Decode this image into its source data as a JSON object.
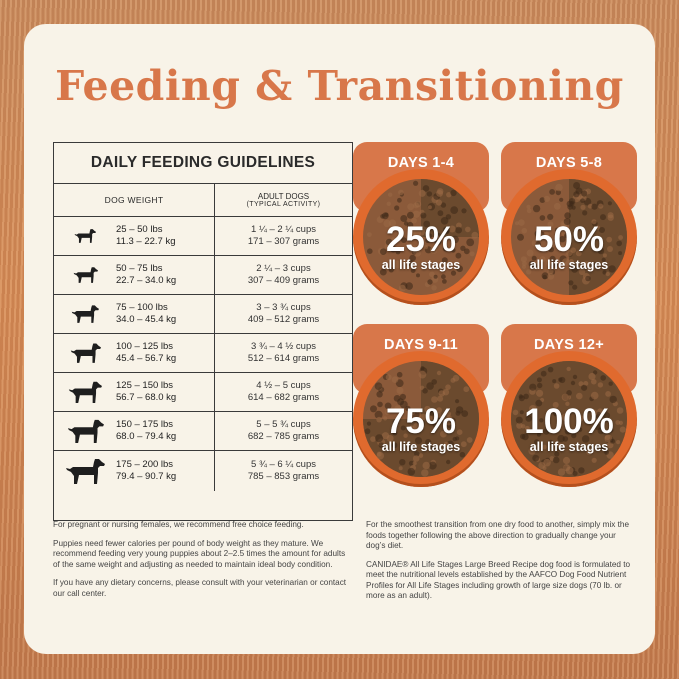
{
  "title": "Feeding & Transitioning",
  "table": {
    "title": "DAILY FEEDING GUIDELINES",
    "col_weight": "DOG WEIGHT",
    "col_adult": "ADULT DOGS",
    "col_adult_sub": "(TYPICAL ACTIVITY)",
    "rows": [
      {
        "lbs": "25 – 50 lbs",
        "kg": "11.3 – 22.7 kg",
        "cups": "1 ¼ – 2 ¼ cups",
        "grams": "171 – 307 grams"
      },
      {
        "lbs": "50 – 75 lbs",
        "kg": "22.7 – 34.0 kg",
        "cups": "2 ¼ – 3 cups",
        "grams": "307 – 409 grams"
      },
      {
        "lbs": "75 – 100 lbs",
        "kg": "34.0 – 45.4 kg",
        "cups": "3 – 3 ¾ cups",
        "grams": "409 – 512 grams"
      },
      {
        "lbs": "100 – 125 lbs",
        "kg": "45.4 – 56.7 kg",
        "cups": "3 ¾ – 4 ½ cups",
        "grams": "512 – 614 grams"
      },
      {
        "lbs": "125 – 150 lbs",
        "kg": "56.7 – 68.0 kg",
        "cups": "4 ½ – 5 cups",
        "grams": "614 – 682 grams"
      },
      {
        "lbs": "150 – 175 lbs",
        "kg": "68.0 – 79.4 kg",
        "cups": "5 – 5 ¾ cups",
        "grams": "682 – 785 grams"
      },
      {
        "lbs": "175 – 200 lbs",
        "kg": "79.4 – 90.7 kg",
        "cups": "5 ¾ – 6 ¼ cups",
        "grams": "785 – 853 grams"
      }
    ]
  },
  "transition": [
    {
      "days": "DAYS 1-4",
      "percent": "25%",
      "label": "all life stages",
      "fraction": 0.25
    },
    {
      "days": "DAYS 5-8",
      "percent": "50%",
      "label": "all life stages",
      "fraction": 0.5
    },
    {
      "days": "DAYS 9-11",
      "percent": "75%",
      "label": "all life stages",
      "fraction": 0.75
    },
    {
      "days": "DAYS 12+",
      "percent": "100%",
      "label": "all life stages",
      "fraction": 1.0
    }
  ],
  "notes_left": [
    "For pregnant or nursing females, we recommend free choice feeding.",
    "Puppies need fewer calories per pound of body weight as they mature. We recommend feeding very young puppies about 2–2.5 times the amount for adults of the same weight and adjusting as needed to maintain ideal body condition.",
    "If you have any dietary concerns, please consult with your veterinarian or contact our call center."
  ],
  "notes_right": [
    "For the smoothest transition from one dry food to another, simply mix the foods together following the above direction to gradually change your dog’s diet.",
    "CANIDAE® All Life Stages Large Breed Recipe dog food is formulated to meet the nutritional levels established by the AAFCO Dog Food Nutrient Profiles for All Life Stages including growth of large size dogs (70 lb. or more as an adult)."
  ],
  "colors": {
    "accent": "#d8774a",
    "bowl": "#e06a2e",
    "kibble_new": "#6b4a2e",
    "kibble_old": "#8b5a3a",
    "text": "#2a2a2a",
    "card": "#f8f3e8"
  },
  "icons": [
    "dog-silhouette-icon"
  ]
}
